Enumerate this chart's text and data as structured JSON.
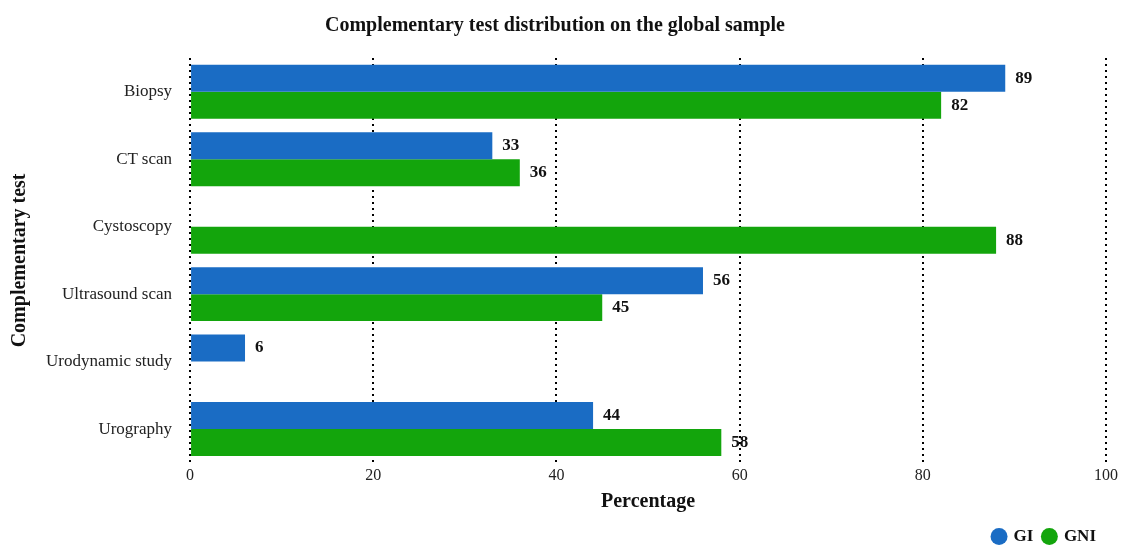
{
  "chart_data": {
    "type": "bar",
    "orientation": "horizontal",
    "title": "Complementary test distribution on the global sample",
    "xlabel": "Percentage",
    "ylabel": "Complementary test",
    "categories": [
      "Biopsy",
      "CT scan",
      "Cystoscopy",
      "Ultrasound scan",
      "Urodynamic study",
      "Urography"
    ],
    "series": [
      {
        "name": "GI",
        "color": "#1a6cc4",
        "values": [
          89,
          33,
          null,
          56,
          6,
          44
        ]
      },
      {
        "name": "GNI",
        "color": "#13a50c",
        "values": [
          82,
          36,
          88,
          45,
          null,
          58
        ]
      }
    ],
    "xlim": [
      0,
      100
    ],
    "xticks": [
      0,
      20,
      40,
      60,
      80,
      100
    ],
    "grid": "x",
    "legend": "bottom right",
    "data_labels": true
  }
}
